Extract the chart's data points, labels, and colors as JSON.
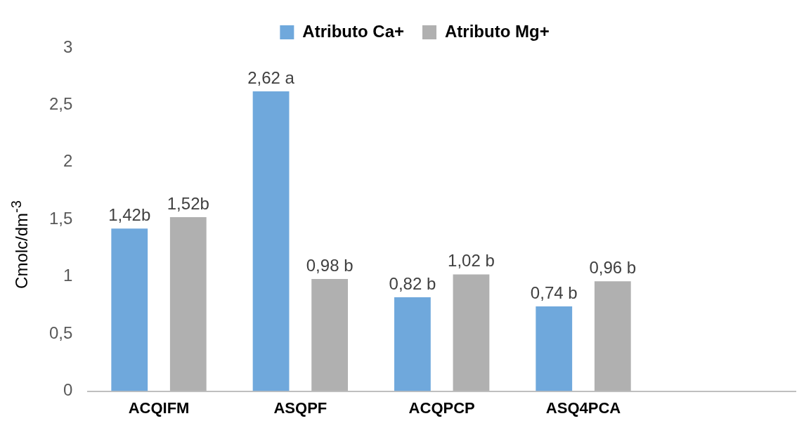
{
  "chart_data": {
    "type": "bar",
    "ylabel": "Cmolc/dm$^{-3}$",
    "categories": [
      "ACQIFM",
      "ASQPF",
      "ACQPCP",
      "ASQ4PCA",
      null
    ],
    "series": [
      {
        "name": "Atributo Ca+",
        "color": "#6fa8dc",
        "values": [
          1.42,
          2.62,
          0.82,
          0.74,
          null
        ],
        "value_labels": [
          "1,42b",
          "2,62 a",
          "0,82 b",
          "0,74 b",
          null
        ]
      },
      {
        "name": "Atributo Mg+",
        "color": "#b0b0b0",
        "values": [
          1.52,
          0.98,
          1.02,
          0.96,
          null
        ],
        "value_labels": [
          "1,52b",
          "0,98 b",
          "1,02 b",
          "0,96 b",
          null
        ]
      }
    ],
    "ylim": [
      0,
      3
    ],
    "yticks": [
      0,
      {
        "value": 0.5,
        "label": "0,5"
      },
      1,
      {
        "value": 1.5,
        "label": "1,5"
      },
      2,
      {
        "value": 2.5,
        "label": "2,5"
      },
      3
    ],
    "grid": false,
    "legend": "top"
  }
}
